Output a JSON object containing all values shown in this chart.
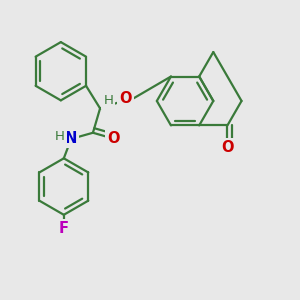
{
  "bg_color": "#e8e8e8",
  "bond_color": "#3a7a3a",
  "o_color": "#cc0000",
  "n_color": "#0000cc",
  "f_color": "#bb00bb",
  "line_width": 1.6,
  "font_size": 10.5,
  "xlim": [
    0,
    1
  ],
  "ylim": [
    0,
    1
  ]
}
